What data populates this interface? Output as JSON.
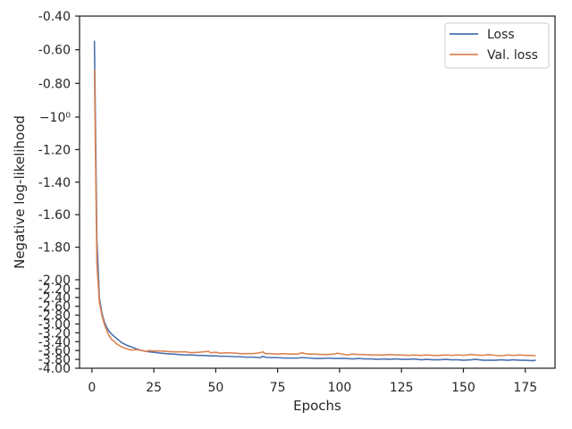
{
  "chart_data": {
    "type": "line",
    "xlabel": "Epochs",
    "ylabel": "Negative log-likelihood",
    "xlim": [
      -5,
      187
    ],
    "ylim": [
      -4.0,
      -0.4
    ],
    "yscale": "symlog",
    "x_ticks": [
      0,
      25,
      50,
      75,
      100,
      125,
      150,
      175
    ],
    "y_ticks": [
      {
        "value": -0.4,
        "label": "-0.40"
      },
      {
        "value": -0.6,
        "label": "-0.60"
      },
      {
        "value": -0.8,
        "label": "-0.80"
      },
      {
        "value": -1.0,
        "label": "−10⁰"
      },
      {
        "value": -1.2,
        "label": "-1.20"
      },
      {
        "value": -1.4,
        "label": "-1.40"
      },
      {
        "value": -1.6,
        "label": "-1.60"
      },
      {
        "value": -1.8,
        "label": "-1.80"
      },
      {
        "value": -2.0,
        "label": "-2.00"
      },
      {
        "value": -2.2,
        "label": "-2.20"
      },
      {
        "value": -2.4,
        "label": "-2.40"
      },
      {
        "value": -2.6,
        "label": "-2.60"
      },
      {
        "value": -2.8,
        "label": "-2.80"
      },
      {
        "value": -3.0,
        "label": "-3.00"
      },
      {
        "value": -3.2,
        "label": "-3.20"
      },
      {
        "value": -3.4,
        "label": "-3.40"
      },
      {
        "value": -3.6,
        "label": "-3.60"
      },
      {
        "value": -3.8,
        "label": "-3.80"
      },
      {
        "value": -4.0,
        "label": "-4.00"
      }
    ],
    "legend_position": "top-right",
    "series": [
      {
        "name": "Loss",
        "color": "#4c72b0",
        "x": [
          1,
          2,
          3,
          4,
          5,
          6,
          7,
          8,
          10,
          12,
          14,
          16,
          18,
          20,
          22,
          25,
          28,
          30,
          33,
          35,
          38,
          40,
          43,
          45,
          48,
          50,
          52,
          55,
          58,
          60,
          62,
          65,
          68,
          69,
          70,
          72,
          75,
          78,
          80,
          83,
          85,
          88,
          90,
          93,
          95,
          98,
          100,
          103,
          105,
          108,
          110,
          113,
          115,
          118,
          120,
          123,
          125,
          128,
          130,
          133,
          135,
          138,
          140,
          143,
          145,
          148,
          150,
          153,
          155,
          158,
          160,
          163,
          165,
          168,
          170,
          173,
          175,
          178,
          179
        ],
        "y": [
          -0.55,
          -1.75,
          -2.4,
          -2.75,
          -2.95,
          -3.08,
          -3.17,
          -3.23,
          -3.33,
          -3.42,
          -3.48,
          -3.52,
          -3.56,
          -3.6,
          -3.62,
          -3.64,
          -3.66,
          -3.67,
          -3.68,
          -3.69,
          -3.7,
          -3.7,
          -3.71,
          -3.71,
          -3.72,
          -3.72,
          -3.73,
          -3.73,
          -3.74,
          -3.74,
          -3.75,
          -3.75,
          -3.76,
          -3.73,
          -3.75,
          -3.76,
          -3.76,
          -3.77,
          -3.77,
          -3.77,
          -3.76,
          -3.77,
          -3.78,
          -3.78,
          -3.77,
          -3.78,
          -3.78,
          -3.78,
          -3.79,
          -3.78,
          -3.79,
          -3.79,
          -3.8,
          -3.79,
          -3.8,
          -3.79,
          -3.8,
          -3.8,
          -3.79,
          -3.81,
          -3.8,
          -3.81,
          -3.81,
          -3.8,
          -3.81,
          -3.81,
          -3.82,
          -3.81,
          -3.8,
          -3.82,
          -3.82,
          -3.82,
          -3.81,
          -3.82,
          -3.81,
          -3.82,
          -3.82,
          -3.83,
          -3.82
        ]
      },
      {
        "name": "Val. loss",
        "color": "#dd8452",
        "x": [
          1,
          2,
          3,
          4,
          5,
          6,
          7,
          8,
          10,
          12,
          14,
          16,
          18,
          20,
          22,
          23,
          25,
          28,
          30,
          33,
          35,
          38,
          40,
          43,
          45,
          47,
          48,
          50,
          52,
          55,
          58,
          60,
          62,
          65,
          68,
          69,
          70,
          72,
          75,
          78,
          80,
          83,
          85,
          86,
          88,
          90,
          93,
          95,
          98,
          99,
          100,
          103,
          105,
          108,
          110,
          113,
          115,
          118,
          120,
          123,
          125,
          128,
          130,
          133,
          135,
          138,
          140,
          143,
          145,
          148,
          150,
          153,
          155,
          158,
          160,
          163,
          165,
          168,
          170,
          173,
          175,
          178,
          179
        ],
        "y": [
          -0.72,
          -1.9,
          -2.5,
          -2.8,
          -3.0,
          -3.15,
          -3.27,
          -3.35,
          -3.45,
          -3.52,
          -3.56,
          -3.59,
          -3.58,
          -3.6,
          -3.62,
          -3.6,
          -3.61,
          -3.61,
          -3.62,
          -3.63,
          -3.63,
          -3.63,
          -3.65,
          -3.64,
          -3.63,
          -3.62,
          -3.65,
          -3.64,
          -3.66,
          -3.65,
          -3.66,
          -3.67,
          -3.67,
          -3.67,
          -3.65,
          -3.63,
          -3.67,
          -3.67,
          -3.68,
          -3.67,
          -3.68,
          -3.68,
          -3.65,
          -3.67,
          -3.68,
          -3.68,
          -3.69,
          -3.69,
          -3.68,
          -3.66,
          -3.67,
          -3.7,
          -3.68,
          -3.69,
          -3.69,
          -3.7,
          -3.7,
          -3.7,
          -3.69,
          -3.7,
          -3.7,
          -3.71,
          -3.7,
          -3.71,
          -3.7,
          -3.71,
          -3.71,
          -3.7,
          -3.71,
          -3.7,
          -3.71,
          -3.69,
          -3.7,
          -3.71,
          -3.69,
          -3.71,
          -3.72,
          -3.7,
          -3.71,
          -3.7,
          -3.71,
          -3.71,
          -3.72
        ]
      }
    ]
  }
}
